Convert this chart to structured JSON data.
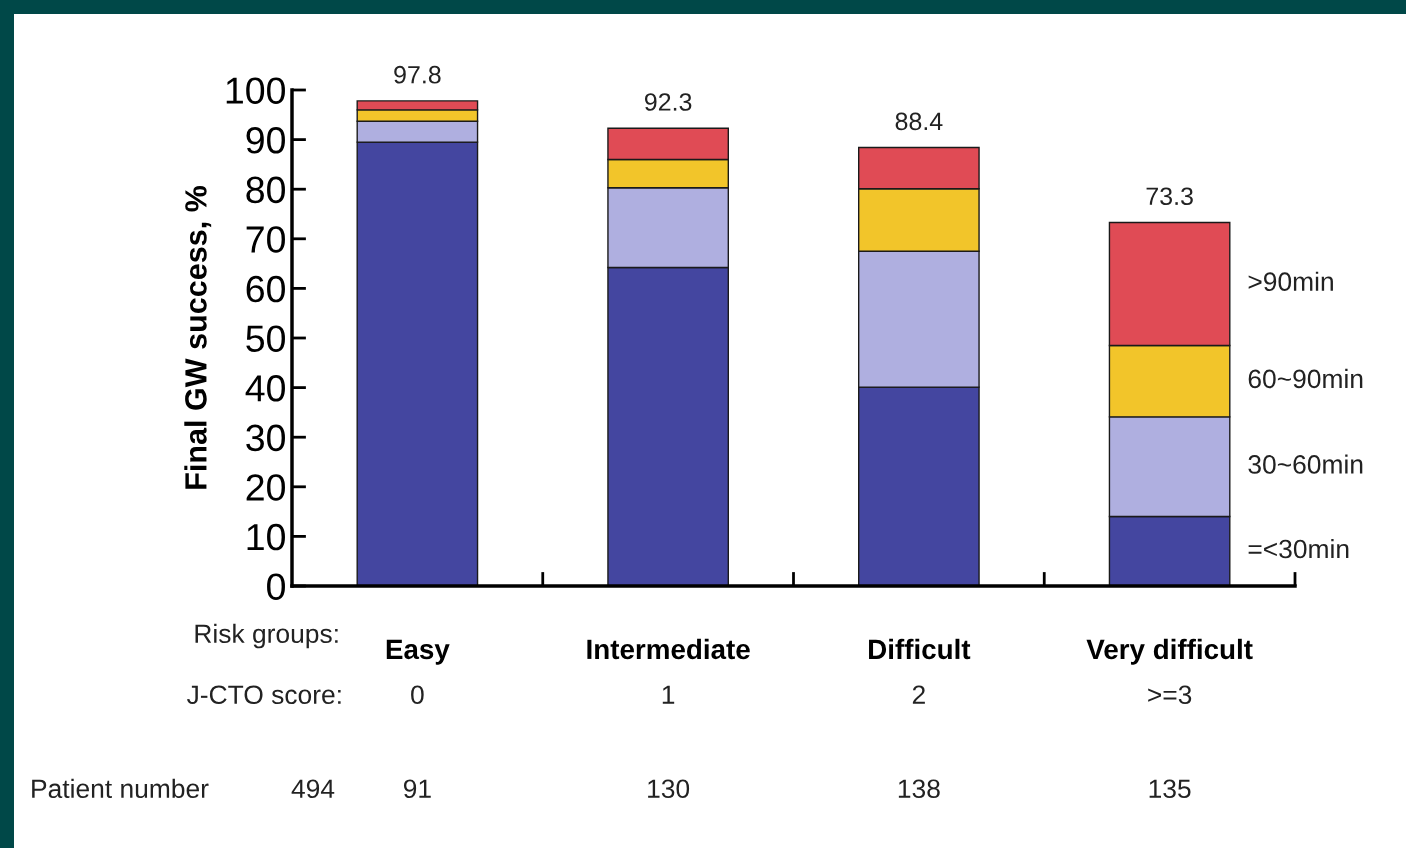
{
  "chart_data": {
    "type": "bar",
    "stacked": true,
    "ylabel": "Final GW success, %",
    "categories": [
      "Easy",
      "Intermediate",
      "Difficult",
      "Very difficult"
    ],
    "series": [
      {
        "name": "=<30min",
        "color": "#4446a0",
        "values": [
          89.5,
          64.2,
          40.1,
          14.0
        ]
      },
      {
        "name": "30~60min",
        "color": "#afafe0",
        "values": [
          4.2,
          16.1,
          27.4,
          20.1
        ]
      },
      {
        "name": "60~90min",
        "color": "#f2c52a",
        "values": [
          2.3,
          5.7,
          12.6,
          14.4
        ]
      },
      {
        "name": ">90min",
        "color": "#e04b55",
        "values": [
          1.8,
          6.3,
          8.3,
          24.8
        ]
      }
    ],
    "totals": [
      "97.8",
      "92.3",
      "88.4",
      "73.3"
    ],
    "ylim": [
      0,
      100
    ],
    "yticks": [
      0,
      10,
      20,
      30,
      40,
      50,
      60,
      70,
      80,
      90,
      100
    ],
    "grid": false,
    "legend": false,
    "annotations": [
      "Risk groups:",
      "J-CTO score:",
      "0",
      "1",
      "2",
      ">=3",
      "Patient number",
      "494",
      "91",
      "130",
      "138",
      "135"
    ]
  }
}
